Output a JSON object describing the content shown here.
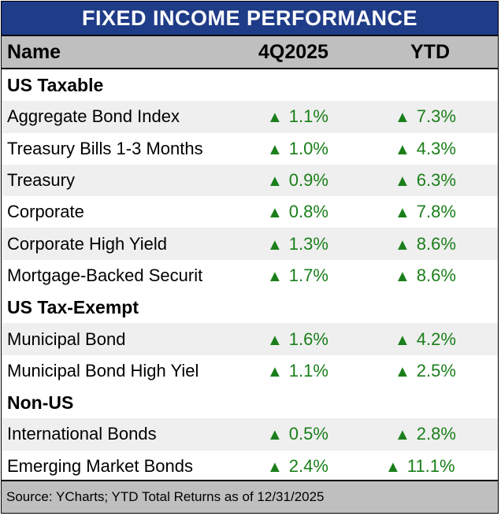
{
  "title": "FIXED INCOME PERFORMANCE",
  "columns": {
    "name": "Name",
    "q": "4Q2025",
    "ytd": "YTD"
  },
  "colors": {
    "title_bg": "#1f3c88",
    "header_bg": "#bfbfbf",
    "positive": "#1a7f1a",
    "shade": "#efefef"
  },
  "icons": {
    "up": "up-triangle-icon"
  },
  "sections": [
    {
      "label": "US Taxable"
    },
    {
      "label": "US Tax-Exempt"
    },
    {
      "label": "Non-US"
    }
  ],
  "rows": [
    {
      "name": "Aggregate Bond Index",
      "q": "1.1%",
      "ytd": "7.3%"
    },
    {
      "name": "Treasury Bills 1-3 Months",
      "q": "1.0%",
      "ytd": "4.3%"
    },
    {
      "name": "Treasury",
      "q": "0.9%",
      "ytd": "6.3%"
    },
    {
      "name": "Corporate",
      "q": "0.8%",
      "ytd": "7.8%"
    },
    {
      "name": "Corporate High Yield",
      "q": "1.3%",
      "ytd": "8.6%"
    },
    {
      "name": "Mortgage-Backed Securit",
      "q": "1.7%",
      "ytd": "8.6%"
    },
    {
      "name": "Municipal Bond",
      "q": "1.6%",
      "ytd": "4.2%"
    },
    {
      "name": "Municipal Bond High Yiel",
      "q": "1.1%",
      "ytd": "2.5%"
    },
    {
      "name": "International Bonds",
      "q": "0.5%",
      "ytd": "2.8%"
    },
    {
      "name": "Emerging Market Bonds",
      "q": "2.4%",
      "ytd": "11.1%"
    }
  ],
  "footer": "Source: YCharts; YTD Total Returns as of 12/31/2025"
}
